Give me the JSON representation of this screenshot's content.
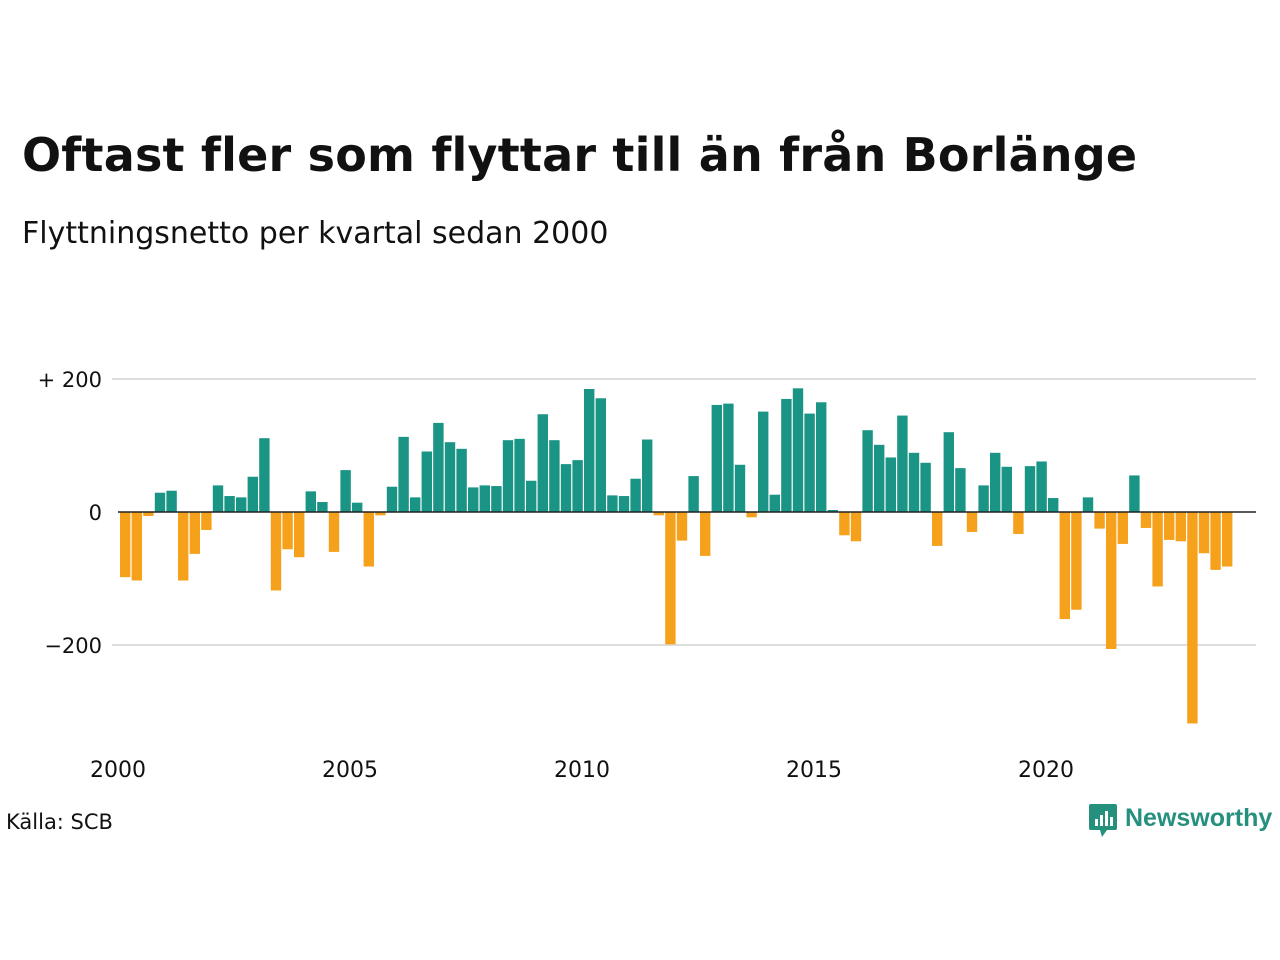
{
  "header": {
    "title": "Oftast fler som flyttar till än från Borlänge",
    "subtitle": "Flyttningsnetto per kvartal sedan 2000"
  },
  "footer": {
    "source": "Källa: SCB",
    "brand": "Newsworthy",
    "brand_icon": "newsworthy-logo-icon"
  },
  "colors": {
    "positive": "#1a9484",
    "negative": "#f5a11c",
    "grid": "#dddddd",
    "zero_line": "#222222",
    "brand": "#26907f"
  },
  "chart_data": {
    "type": "bar",
    "title": "Oftast fler som flyttar till än från Borlänge",
    "subtitle": "Flyttningsnetto per kvartal sedan 2000",
    "x_tick_labels": [
      "2000",
      "2005",
      "2010",
      "2015",
      "2020"
    ],
    "y_tick_labels": [
      "+ 200",
      "0",
      "−200"
    ],
    "y_ticks": [
      200,
      0,
      -200
    ],
    "ylim": [
      -320,
      200
    ],
    "start_year": 2000,
    "grid": true,
    "series": [
      {
        "values": [
          -98,
          -103,
          -6,
          29,
          32,
          -103,
          -63,
          -27,
          40,
          24,
          22,
          53,
          111,
          -118,
          -56,
          -68,
          31,
          15,
          -60,
          63,
          14,
          -82,
          -5,
          38,
          113,
          22,
          91,
          134,
          105,
          95,
          37,
          40,
          39,
          108,
          110,
          47,
          147,
          108,
          72,
          78,
          185,
          171,
          25,
          24,
          50,
          109,
          -5,
          -199,
          -43,
          54,
          -66,
          161,
          163,
          71,
          -8,
          151,
          26,
          170,
          186,
          148,
          165,
          3,
          -35,
          -44,
          123,
          101,
          82,
          145,
          89,
          74,
          -51,
          120,
          66,
          -30,
          40,
          89,
          68,
          -33,
          69,
          76,
          21,
          -161,
          -147,
          22,
          -25,
          -206,
          -48,
          55,
          -24,
          -112,
          -42,
          -44,
          -318,
          -62,
          -87,
          -82
        ]
      }
    ]
  }
}
